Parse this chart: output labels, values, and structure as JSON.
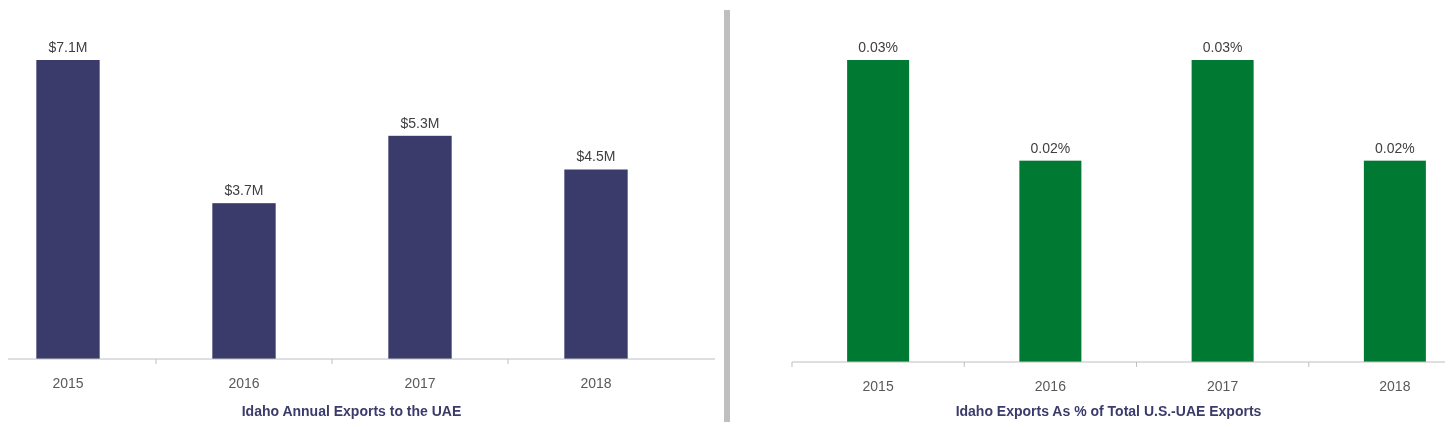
{
  "chart_data": [
    {
      "type": "bar",
      "title": "Idaho Annual Exports to the UAE",
      "categories": [
        "2015",
        "2016",
        "2017",
        "2018"
      ],
      "values": [
        7.1,
        3.7,
        5.3,
        4.5
      ],
      "value_labels": [
        "$7.1M",
        "$3.7M",
        "$5.3M",
        "$4.5M"
      ],
      "color": "#3b3b6b"
    },
    {
      "type": "bar",
      "title": "Idaho Exports As % of Total U.S.-UAE Exports",
      "categories": [
        "2015",
        "2016",
        "2017",
        "2018"
      ],
      "values": [
        0.03,
        0.02,
        0.03,
        0.02
      ],
      "value_labels": [
        "0.03%",
        "0.02%",
        "0.03%",
        "0.02%"
      ],
      "color": "#007a33"
    }
  ]
}
